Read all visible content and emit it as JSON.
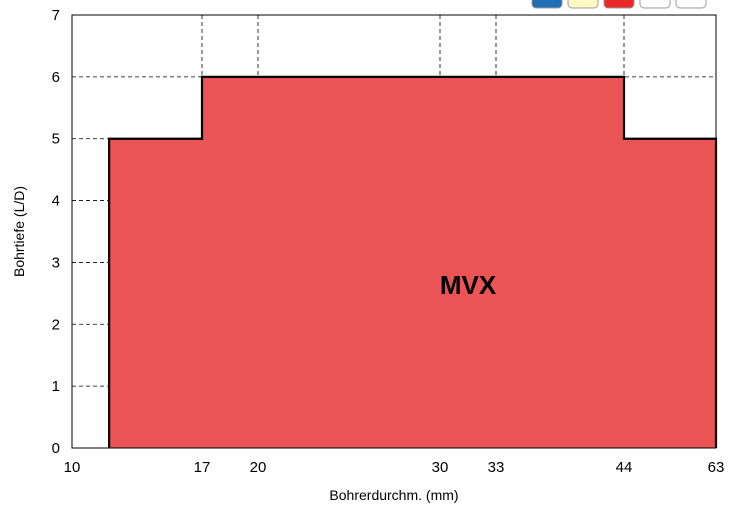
{
  "chart_data": {
    "type": "area",
    "title": "",
    "xlabel": "Bohrerdurchm. (mm)",
    "ylabel": "Bohrtiefe (L/D)",
    "x_ticks": [
      10,
      17,
      20,
      30,
      33,
      44,
      63
    ],
    "y_ticks": [
      0,
      1,
      2,
      3,
      4,
      5,
      6,
      7
    ],
    "ylim": [
      0,
      7
    ],
    "grid": true,
    "series": [
      {
        "name": "MVX",
        "color": "#ea5455",
        "x": [
          12,
          12,
          17,
          17,
          44,
          44,
          63,
          63
        ],
        "y": [
          0,
          5,
          5,
          6,
          6,
          5,
          5,
          0
        ]
      }
    ],
    "legend_swatches": [
      "#1f6fb5",
      "#fff9c4",
      "#e8282b",
      "#ffffff",
      "#ffffff"
    ]
  }
}
